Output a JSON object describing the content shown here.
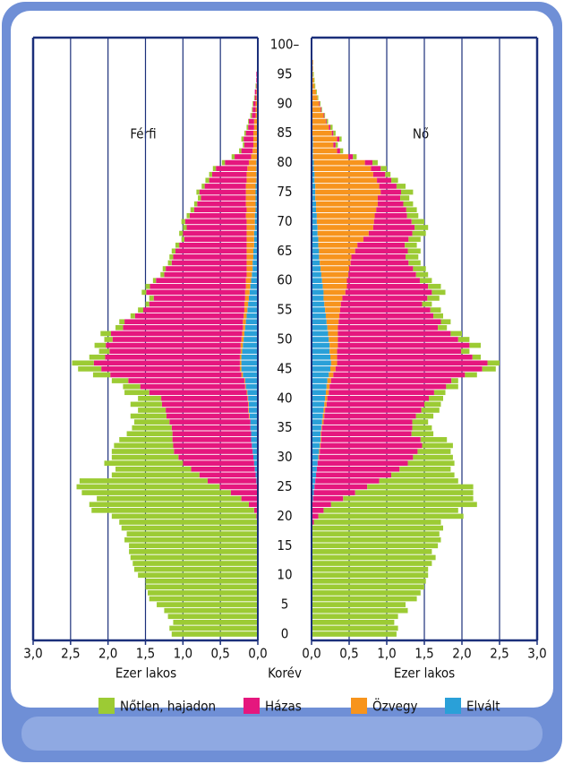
{
  "chart_data": {
    "type": "population-pyramid",
    "panels": [
      {
        "label": "Férfi"
      },
      {
        "label": "Nő"
      }
    ],
    "xlabel": "Ezer lakos",
    "center_label": "Korév",
    "xlim": [
      0,
      3
    ],
    "xticks": [
      {
        "value": 0,
        "label": "0,0"
      },
      {
        "value": 0.5,
        "label": "0,5"
      },
      {
        "value": 1,
        "label": "1,0"
      },
      {
        "value": 1.5,
        "label": "1,5"
      },
      {
        "value": 2,
        "label": "2,0"
      },
      {
        "value": 2.5,
        "label": "2,5"
      },
      {
        "value": 3,
        "label": "3,0"
      }
    ],
    "grid": true,
    "categories": [
      0,
      null,
      null,
      null,
      null,
      5,
      null,
      null,
      null,
      null,
      10,
      null,
      null,
      null,
      null,
      15,
      null,
      null,
      null,
      null,
      20,
      null,
      null,
      null,
      null,
      25,
      null,
      null,
      null,
      null,
      30,
      null,
      null,
      null,
      null,
      35,
      null,
      null,
      null,
      null,
      40,
      null,
      null,
      null,
      null,
      45,
      null,
      null,
      null,
      null,
      50,
      null,
      null,
      null,
      null,
      55,
      null,
      null,
      null,
      null,
      60,
      null,
      null,
      null,
      null,
      65,
      null,
      null,
      null,
      null,
      70,
      null,
      null,
      null,
      null,
      75,
      null,
      null,
      null,
      null,
      80,
      null,
      null,
      null,
      null,
      85,
      null,
      null,
      null,
      null,
      90,
      null,
      null,
      null,
      null,
      95,
      null,
      null,
      null,
      null,
      "100–"
    ],
    "series": [
      {
        "name": "Nőtlen, hajadon",
        "color": "#9ccb34",
        "values": [
          [
            1.15,
            1.18,
            1.13,
            1.2,
            1.25,
            1.35,
            1.45,
            1.47,
            1.5,
            1.5,
            1.6,
            1.65,
            1.67,
            1.7,
            1.72,
            1.72,
            1.78,
            1.75,
            1.82,
            1.85,
            1.93,
            2.17,
            2.13,
            1.93,
            1.99,
            1.91,
            1.71,
            1.17,
            1.01,
            1.05,
            0.89,
            0.83,
            0.79,
            0.71,
            0.61,
            0.53,
            0.47,
            0.48,
            0.37,
            0.42,
            0.31,
            0.33,
            0.23,
            0.22,
            0.23,
            0.31,
            0.29,
            0.21,
            0.14,
            0.15,
            0.11,
            0.14,
            0.1,
            0.07,
            0.06,
            0.07,
            0.05,
            0.06,
            0.06,
            0.06,
            0.04,
            0.05,
            0.04,
            0.05,
            0.05,
            0.05,
            0.05,
            0.04,
            0.05,
            0.05,
            0.05,
            0.04,
            0.05,
            0.04,
            0.04,
            0.04,
            0.04,
            0.05,
            0.04,
            0.04,
            0.04,
            0.04,
            0.03,
            0.02,
            0.03,
            0.02,
            0.02,
            0.01,
            0.02,
            0.01,
            0.01,
            0.01,
            0,
            0.01,
            0,
            0,
            0,
            0,
            0,
            0,
            0
          ],
          [
            1.13,
            1.15,
            1.1,
            1.15,
            1.28,
            1.25,
            1.4,
            1.45,
            1.5,
            1.52,
            1.55,
            1.55,
            1.6,
            1.65,
            1.6,
            1.68,
            1.72,
            1.7,
            1.75,
            1.69,
            1.93,
            1.79,
            1.94,
            1.73,
            1.57,
            1.41,
            1.05,
            0.84,
            0.68,
            0.62,
            0.53,
            0.44,
            0.41,
            0.35,
            0.29,
            0.26,
            0.21,
            0.23,
            0.24,
            0.22,
            0.19,
            0.15,
            0.16,
            0.09,
            0.16,
            0.18,
            0.16,
            0.11,
            0.11,
            0.15,
            0.15,
            0.15,
            0.12,
            0.13,
            0.13,
            0.14,
            0.13,
            0.16,
            0.18,
            0.17,
            0.16,
            0.16,
            0.17,
            0.16,
            0.17,
            0.17,
            0.16,
            0.16,
            0.18,
            0.18,
            0.17,
            0.15,
            0.14,
            0.13,
            0.12,
            0.16,
            0.12,
            0.09,
            0.07,
            0.08,
            0.07,
            0.05,
            0.04,
            0.03,
            0.03,
            0.03,
            0.03,
            0.02,
            0.01,
            0.01,
            0.01,
            0.01,
            0.01,
            0.01,
            0.01,
            0.01,
            0,
            0,
            0,
            0,
            0
          ]
        ]
      },
      {
        "name": "Házas",
        "color": "#e5177e",
        "values": [
          [
            0,
            0,
            0,
            0,
            0,
            0,
            0,
            0,
            0,
            0,
            0,
            0,
            0,
            0,
            0,
            0,
            0,
            0,
            0,
            0,
            0.02,
            0.05,
            0.12,
            0.22,
            0.35,
            0.5,
            0.65,
            0.75,
            0.85,
            0.95,
            1.0,
            1.05,
            1.05,
            1.05,
            1.05,
            1.05,
            1.08,
            1.1,
            1.1,
            1.15,
            1.15,
            1.3,
            1.4,
            1.55,
            1.75,
            1.85,
            1.95,
            1.8,
            1.75,
            1.8,
            1.72,
            1.75,
            1.6,
            1.58,
            1.45,
            1.35,
            1.27,
            1.22,
            1.32,
            1.28,
            1.2,
            1.1,
            1.08,
            1.0,
            0.98,
            0.95,
            0.9,
            0.83,
            0.85,
            0.8,
            0.82,
            0.75,
            0.7,
            0.65,
            0.6,
            0.62,
            0.55,
            0.5,
            0.46,
            0.42,
            0.32,
            0.22,
            0.15,
            0.12,
            0.13,
            0.1,
            0.08,
            0.07,
            0.05,
            0.04,
            0.03,
            0.02,
            0.02,
            0.01,
            0.01,
            0.01,
            0,
            0,
            0,
            0,
            0
          ],
          [
            0,
            0,
            0,
            0,
            0,
            0,
            0,
            0,
            0,
            0,
            0,
            0,
            0,
            0,
            0,
            0,
            0,
            0,
            0,
            0.03,
            0.08,
            0.15,
            0.25,
            0.4,
            0.55,
            0.7,
            0.85,
            1.0,
            1.1,
            1.2,
            1.25,
            1.3,
            1.35,
            1.32,
            1.2,
            1.2,
            1.18,
            1.22,
            1.28,
            1.3,
            1.35,
            1.4,
            1.55,
            1.6,
            1.75,
            1.95,
            2.0,
            1.8,
            1.65,
            1.75,
            1.6,
            1.5,
            1.33,
            1.36,
            1.25,
            1.2,
            1.08,
            1.13,
            1.15,
            1.08,
            0.97,
            0.9,
            0.85,
            0.77,
            0.72,
            0.7,
            0.63,
            0.6,
            0.58,
            0.55,
            0.5,
            0.43,
            0.4,
            0.34,
            0.3,
            0.27,
            0.23,
            0.19,
            0.16,
            0.13,
            0.1,
            0.06,
            0.04,
            0.03,
            0.03,
            0.02,
            0.02,
            0.01,
            0.01,
            0.01,
            0.01,
            0,
            0,
            0,
            0,
            0,
            0,
            0,
            0,
            0,
            0
          ]
        ]
      },
      {
        "name": "Özvegy",
        "color": "#f7941d",
        "values": [
          [
            0,
            0,
            0,
            0,
            0,
            0,
            0,
            0,
            0,
            0,
            0,
            0,
            0,
            0,
            0,
            0,
            0,
            0,
            0,
            0,
            0,
            0,
            0,
            0,
            0,
            0,
            0,
            0,
            0,
            0,
            0,
            0,
            0,
            0,
            0,
            0,
            0,
            0.01,
            0.01,
            0.01,
            0.01,
            0.01,
            0.01,
            0.01,
            0.02,
            0.02,
            0.02,
            0.02,
            0.02,
            0.03,
            0.03,
            0.03,
            0.03,
            0.04,
            0.04,
            0.04,
            0.05,
            0.05,
            0.06,
            0.06,
            0.07,
            0.07,
            0.08,
            0.08,
            0.09,
            0.09,
            0.1,
            0.1,
            0.1,
            0.11,
            0.11,
            0.12,
            0.12,
            0.13,
            0.13,
            0.13,
            0.13,
            0.13,
            0.13,
            0.12,
            0.1,
            0.08,
            0.06,
            0.05,
            0.05,
            0.05,
            0.04,
            0.04,
            0.03,
            0.03,
            0.03,
            0.02,
            0.02,
            0.01,
            0.01,
            0.01,
            0.01,
            0.01,
            0.01,
            0,
            0.01
          ],
          [
            0,
            0,
            0,
            0,
            0,
            0,
            0,
            0,
            0,
            0,
            0,
            0,
            0,
            0,
            0,
            0,
            0,
            0,
            0,
            0,
            0,
            0,
            0,
            0,
            0,
            0,
            0,
            0,
            0,
            0,
            0.01,
            0.01,
            0.01,
            0.01,
            0.01,
            0.01,
            0.02,
            0.02,
            0.02,
            0.03,
            0.03,
            0.04,
            0.04,
            0.05,
            0.06,
            0.07,
            0.08,
            0.09,
            0.1,
            0.11,
            0.12,
            0.13,
            0.14,
            0.16,
            0.18,
            0.2,
            0.22,
            0.25,
            0.29,
            0.32,
            0.33,
            0.36,
            0.38,
            0.41,
            0.43,
            0.48,
            0.52,
            0.6,
            0.68,
            0.74,
            0.76,
            0.77,
            0.8,
            0.82,
            0.83,
            0.87,
            0.85,
            0.83,
            0.78,
            0.76,
            0.68,
            0.47,
            0.32,
            0.27,
            0.32,
            0.26,
            0.22,
            0.18,
            0.15,
            0.11,
            0.1,
            0.08,
            0.06,
            0.04,
            0.03,
            0.02,
            0.02,
            0.02,
            0.01,
            0.01,
            0.01
          ]
        ]
      },
      {
        "name": "Elvált",
        "color": "#2aa0d8",
        "values": [
          [
            0,
            0,
            0,
            0,
            0,
            0,
            0,
            0,
            0,
            0,
            0,
            0,
            0,
            0,
            0,
            0,
            0,
            0,
            0,
            0,
            0,
            0,
            0,
            0,
            0.01,
            0.01,
            0.02,
            0.03,
            0.04,
            0.05,
            0.06,
            0.07,
            0.08,
            0.09,
            0.09,
            0.1,
            0.1,
            0.11,
            0.12,
            0.12,
            0.13,
            0.14,
            0.16,
            0.17,
            0.2,
            0.22,
            0.22,
            0.22,
            0.21,
            0.2,
            0.19,
            0.18,
            0.17,
            0.16,
            0.15,
            0.14,
            0.13,
            0.12,
            0.11,
            0.1,
            0.09,
            0.08,
            0.07,
            0.07,
            0.06,
            0.06,
            0.05,
            0.05,
            0.05,
            0.04,
            0.04,
            0.04,
            0.03,
            0.03,
            0.03,
            0.03,
            0.03,
            0.02,
            0.02,
            0.02,
            0.02,
            0.01,
            0.01,
            0.01,
            0.01,
            0.01,
            0.01,
            0.01,
            0,
            0,
            0,
            0,
            0,
            0,
            0,
            0,
            0,
            0,
            0,
            0,
            0
          ],
          [
            0,
            0,
            0,
            0,
            0,
            0,
            0,
            0,
            0,
            0,
            0,
            0,
            0,
            0,
            0,
            0,
            0,
            0,
            0,
            0,
            0.01,
            0.01,
            0.01,
            0.02,
            0.03,
            0.04,
            0.05,
            0.06,
            0.07,
            0.08,
            0.09,
            0.1,
            0.11,
            0.12,
            0.12,
            0.13,
            0.14,
            0.15,
            0.16,
            0.17,
            0.18,
            0.19,
            0.2,
            0.21,
            0.23,
            0.25,
            0.26,
            0.25,
            0.24,
            0.24,
            0.23,
            0.22,
            0.21,
            0.2,
            0.19,
            0.18,
            0.17,
            0.16,
            0.16,
            0.15,
            0.14,
            0.13,
            0.12,
            0.11,
            0.1,
            0.1,
            0.09,
            0.09,
            0.08,
            0.08,
            0.07,
            0.07,
            0.06,
            0.06,
            0.05,
            0.05,
            0.05,
            0.04,
            0.04,
            0.03,
            0.03,
            0.02,
            0.02,
            0.02,
            0.02,
            0.01,
            0.01,
            0.01,
            0.01,
            0.01,
            0,
            0,
            0,
            0,
            0,
            0,
            0,
            0,
            0,
            0,
            0
          ]
        ]
      }
    ]
  }
}
